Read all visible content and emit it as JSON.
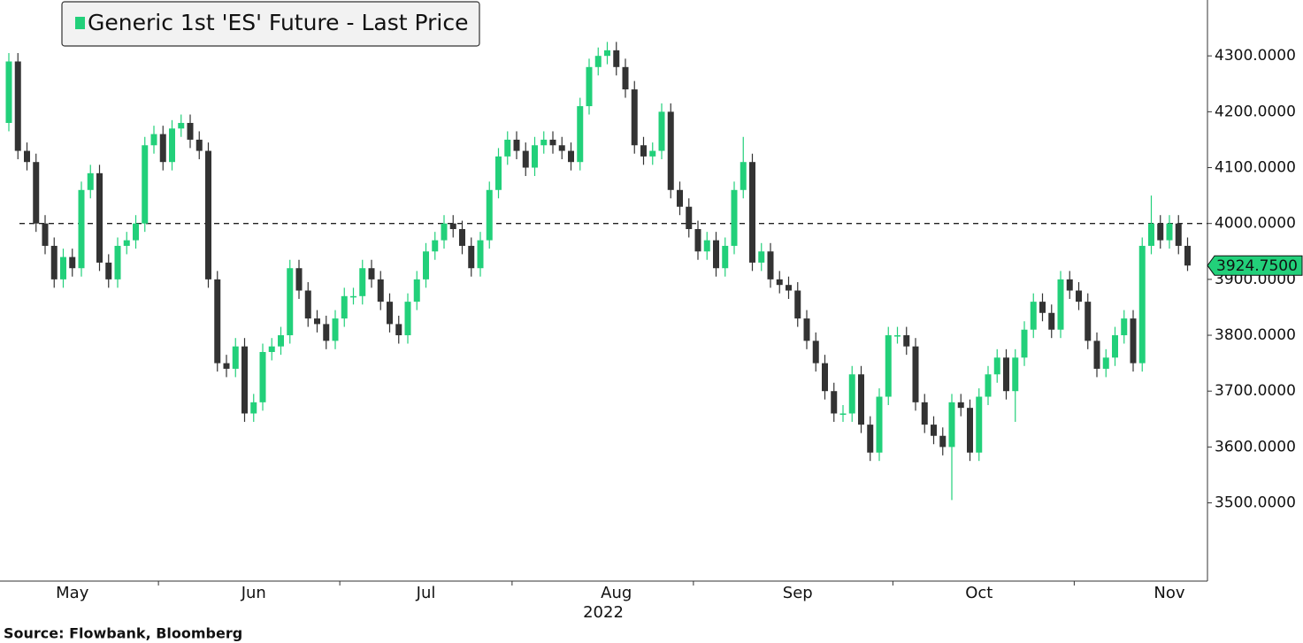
{
  "chart_data": {
    "type": "candlestick",
    "title": "Generic 1st 'ES' Future - Last Price",
    "source": "Source: Flowbank, Bloomberg",
    "year_label": "2022",
    "up_color": "#22d07a",
    "down_color": "#333333",
    "reference_line": 4000,
    "last_price": 3924.75,
    "last_price_label": "3924.7500",
    "ylim": [
      3360,
      4400
    ],
    "yticks": [
      {
        "value": 3500,
        "label": "3500.0000"
      },
      {
        "value": 3600,
        "label": "3600.0000"
      },
      {
        "value": 3700,
        "label": "3700.0000"
      },
      {
        "value": 3800,
        "label": "3800.0000"
      },
      {
        "value": 3900,
        "label": "3900.0000"
      },
      {
        "value": 4000,
        "label": "4000.0000"
      },
      {
        "value": 4100,
        "label": "4100.0000"
      },
      {
        "value": 4200,
        "label": "4200.0000"
      },
      {
        "value": 4300,
        "label": "4300.0000"
      }
    ],
    "month_labels": [
      {
        "value": 7,
        "label": "May"
      },
      {
        "value": 27,
        "label": "Jun"
      },
      {
        "value": 46,
        "label": "Jul"
      },
      {
        "value": 67,
        "label": "Aug"
      },
      {
        "value": 87,
        "label": "Sep"
      },
      {
        "value": 107,
        "label": "Oct"
      },
      {
        "value": 128,
        "label": "Nov"
      }
    ],
    "month_starts": [
      17,
      37,
      56,
      76,
      98,
      118
    ],
    "open": [
      4180,
      4290,
      4130,
      4110,
      4000,
      3960,
      3900,
      3940,
      3920,
      4060,
      4090,
      3930,
      3900,
      3960,
      3970,
      4000,
      4140,
      4160,
      4110,
      4170,
      4180,
      4150,
      4130,
      3900,
      3750,
      3740,
      3780,
      3660,
      3680,
      3770,
      3780,
      3800,
      3920,
      3880,
      3830,
      3820,
      3790,
      3830,
      3870,
      3870,
      3920,
      3900,
      3860,
      3820,
      3800,
      3860,
      3900,
      3950,
      3970,
      4000,
      3990,
      3960,
      3920,
      3970,
      4060,
      4120,
      4150,
      4130,
      4100,
      4140,
      4150,
      4140,
      4130,
      4110,
      4210,
      4280,
      4300,
      4310,
      4280,
      4240,
      4140,
      4120,
      4130,
      4200,
      4060,
      4030,
      3990,
      3950,
      3970,
      3920,
      3960,
      4060,
      4110,
      3930,
      3950,
      3900,
      3890,
      3880,
      3830,
      3790,
      3750,
      3700,
      3660,
      3660,
      3730,
      3640,
      3590,
      3690,
      3800,
      3800,
      3780,
      3680,
      3640,
      3620,
      3600,
      3680,
      3670,
      3590,
      3690,
      3730,
      3760,
      3700,
      3760,
      3810,
      3860,
      3840,
      3810,
      3900,
      3880,
      3860,
      3790,
      3740,
      3760,
      3800,
      3830,
      3750,
      3960,
      4000,
      3970,
      4000,
      3960
    ],
    "high": [
      4305,
      4305,
      4145,
      4125,
      4015,
      3975,
      3955,
      3955,
      4075,
      4105,
      4105,
      3945,
      3975,
      3985,
      4015,
      4155,
      4175,
      4175,
      4185,
      4195,
      4195,
      4165,
      4145,
      3915,
      3765,
      3795,
      3795,
      3695,
      3785,
      3795,
      3815,
      3935,
      3935,
      3895,
      3845,
      3835,
      3845,
      3885,
      3885,
      3935,
      3935,
      3915,
      3875,
      3835,
      3875,
      3915,
      3965,
      3985,
      4015,
      4015,
      4005,
      3975,
      3985,
      4075,
      4135,
      4165,
      4165,
      4145,
      4155,
      4165,
      4165,
      4155,
      4145,
      4225,
      4295,
      4315,
      4325,
      4325,
      4295,
      4255,
      4155,
      4145,
      4215,
      4215,
      4075,
      4045,
      4005,
      3985,
      3985,
      3975,
      4075,
      4155,
      4125,
      3965,
      3965,
      3915,
      3905,
      3895,
      3845,
      3805,
      3765,
      3715,
      3675,
      3745,
      3745,
      3655,
      3705,
      3815,
      3815,
      3815,
      3795,
      3695,
      3655,
      3635,
      3695,
      3695,
      3685,
      3705,
      3745,
      3775,
      3775,
      3775,
      3825,
      3875,
      3875,
      3855,
      3915,
      3915,
      3895,
      3875,
      3805,
      3775,
      3815,
      3845,
      3845,
      3975,
      4050,
      4015,
      4015,
      4015,
      3975
    ],
    "low": [
      4165,
      4115,
      4095,
      3985,
      3945,
      3885,
      3885,
      3905,
      3905,
      4045,
      3915,
      3885,
      3885,
      3945,
      3955,
      3985,
      4125,
      4095,
      4095,
      4155,
      4135,
      4115,
      3885,
      3735,
      3725,
      3725,
      3645,
      3645,
      3665,
      3755,
      3765,
      3785,
      3865,
      3815,
      3805,
      3775,
      3775,
      3815,
      3855,
      3855,
      3885,
      3845,
      3805,
      3785,
      3785,
      3845,
      3885,
      3935,
      3955,
      3975,
      3945,
      3905,
      3905,
      3955,
      4045,
      4105,
      4115,
      4085,
      4085,
      4125,
      4125,
      4115,
      4095,
      4095,
      4195,
      4265,
      4285,
      4265,
      4225,
      4125,
      4105,
      4105,
      4115,
      4045,
      4015,
      3975,
      3935,
      3935,
      3905,
      3905,
      3945,
      4045,
      3915,
      3915,
      3885,
      3875,
      3865,
      3815,
      3775,
      3735,
      3685,
      3645,
      3645,
      3645,
      3625,
      3575,
      3575,
      3675,
      3785,
      3765,
      3665,
      3625,
      3605,
      3585,
      3505,
      3655,
      3575,
      3575,
      3675,
      3715,
      3685,
      3645,
      3745,
      3795,
      3825,
      3795,
      3795,
      3865,
      3845,
      3775,
      3725,
      3725,
      3745,
      3785,
      3735,
      3735,
      3945,
      3955,
      3955,
      3945,
      3915
    ],
    "close": [
      4290,
      4130,
      4110,
      4000,
      3960,
      3900,
      3940,
      3920,
      4060,
      4090,
      3930,
      3900,
      3960,
      3970,
      4000,
      4140,
      4160,
      4110,
      4170,
      4180,
      4150,
      4130,
      3900,
      3750,
      3740,
      3780,
      3660,
      3680,
      3770,
      3780,
      3800,
      3920,
      3880,
      3830,
      3820,
      3790,
      3830,
      3870,
      3870,
      3920,
      3900,
      3860,
      3820,
      3800,
      3860,
      3900,
      3950,
      3970,
      4000,
      3990,
      3960,
      3920,
      3970,
      4060,
      4120,
      4150,
      4130,
      4100,
      4140,
      4150,
      4140,
      4130,
      4110,
      4210,
      4280,
      4300,
      4310,
      4280,
      4240,
      4140,
      4120,
      4130,
      4200,
      4060,
      4030,
      3990,
      3950,
      3970,
      3920,
      3960,
      4060,
      4110,
      3930,
      3950,
      3900,
      3890,
      3880,
      3830,
      3790,
      3750,
      3700,
      3660,
      3660,
      3730,
      3640,
      3590,
      3690,
      3800,
      3800,
      3780,
      3680,
      3640,
      3620,
      3600,
      3680,
      3670,
      3590,
      3690,
      3730,
      3760,
      3700,
      3760,
      3810,
      3860,
      3840,
      3810,
      3900,
      3880,
      3860,
      3790,
      3740,
      3760,
      3800,
      3830,
      3750,
      3960,
      4000,
      3970,
      4000,
      3960,
      3924.75
    ]
  }
}
